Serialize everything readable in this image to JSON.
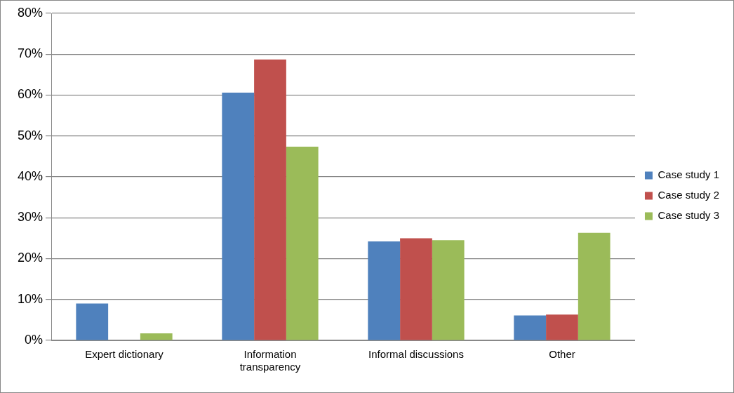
{
  "chart_data": {
    "type": "bar",
    "categories": [
      "Expert dictionary",
      "Information transparency",
      "Informal discussions",
      "Other"
    ],
    "series": [
      {
        "name": "Case study 1",
        "color": "#4f81bd",
        "values": [
          9.0,
          60.6,
          24.2,
          6.1
        ]
      },
      {
        "name": "Case study 2",
        "color": "#c0504d",
        "values": [
          0,
          68.7,
          25.0,
          6.3
        ]
      },
      {
        "name": "Case study 3",
        "color": "#9bbb59",
        "values": [
          1.7,
          47.4,
          24.5,
          26.3
        ]
      }
    ],
    "ylim": [
      0,
      80
    ],
    "yticks": [
      {
        "value": 0,
        "label": "0%"
      },
      {
        "value": 10,
        "label": "10%"
      },
      {
        "value": 20,
        "label": "20%"
      },
      {
        "value": 30,
        "label": "30%"
      },
      {
        "value": 40,
        "label": "40%"
      },
      {
        "value": 50,
        "label": "50%"
      },
      {
        "value": 60,
        "label": "60%"
      },
      {
        "value": 70,
        "label": "70%"
      },
      {
        "value": 80,
        "label": "80%"
      }
    ],
    "grid": "y",
    "legend": "right"
  }
}
